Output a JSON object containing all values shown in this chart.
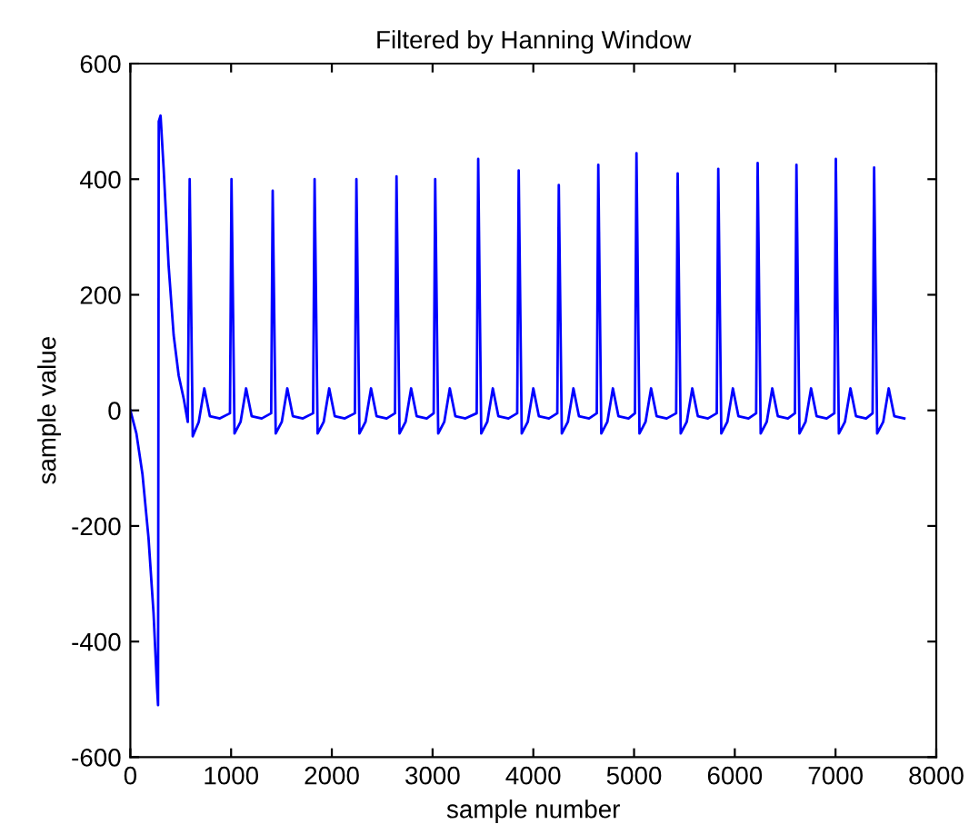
{
  "chart_data": {
    "type": "line",
    "title": "Filtered by Hanning Window",
    "xlabel": "sample number",
    "ylabel": "sample value",
    "xlim": [
      0,
      8000
    ],
    "ylim": [
      -600,
      600
    ],
    "xticks": [
      0,
      1000,
      2000,
      3000,
      4000,
      5000,
      6000,
      7000,
      8000
    ],
    "yticks": [
      -600,
      -400,
      -200,
      0,
      200,
      400,
      600
    ],
    "grid": false,
    "legend": false,
    "marker": "none",
    "line_style": "solid",
    "series": [
      {
        "color": "#0000ff",
        "x": [
          0,
          60,
          120,
          180,
          230,
          265,
          275,
          282,
          300,
          330,
          380,
          430,
          480,
          530,
          570,
          589,
          619,
          679,
          734,
          789,
          889,
          989,
          1004,
          1034,
          1094,
          1149,
          1204,
          1304,
          1398,
          1413,
          1443,
          1503,
          1558,
          1613,
          1713,
          1814,
          1829,
          1859,
          1919,
          1974,
          2029,
          2129,
          2229,
          2244,
          2274,
          2334,
          2389,
          2444,
          2544,
          2627,
          2642,
          2672,
          2732,
          2787,
          2842,
          2942,
          3011,
          3026,
          3056,
          3116,
          3171,
          3226,
          3326,
          3438,
          3453,
          3483,
          3543,
          3598,
          3653,
          3753,
          3840,
          3855,
          3885,
          3945,
          4000,
          4055,
          4155,
          4238,
          4253,
          4283,
          4343,
          4398,
          4453,
          4553,
          4630,
          4645,
          4675,
          4735,
          4790,
          4845,
          4945,
          5009,
          5024,
          5054,
          5114,
          5169,
          5224,
          5324,
          5418,
          5433,
          5463,
          5523,
          5578,
          5633,
          5733,
          5821,
          5836,
          5866,
          5926,
          5981,
          6036,
          6136,
          6212,
          6227,
          6257,
          6317,
          6372,
          6427,
          6527,
          6597,
          6612,
          6642,
          6702,
          6757,
          6812,
          6912,
          6988,
          7003,
          7033,
          7093,
          7148,
          7203,
          7303,
          7368,
          7383,
          7413,
          7473,
          7528,
          7583,
          7683
        ],
        "values": [
          0,
          -40,
          -110,
          -220,
          -350,
          -480,
          -510,
          500,
          510,
          420,
          250,
          130,
          60,
          20,
          -20,
          400,
          -45,
          -20,
          38,
          -10,
          -14,
          -5,
          400,
          -40,
          -20,
          38,
          -10,
          -14,
          -5,
          380,
          -40,
          -20,
          38,
          -10,
          -14,
          -5,
          400,
          -40,
          -20,
          38,
          -10,
          -14,
          -5,
          400,
          -40,
          -20,
          38,
          -10,
          -14,
          -5,
          405,
          -40,
          -20,
          38,
          -10,
          -14,
          -5,
          400,
          -40,
          -20,
          38,
          -10,
          -14,
          -5,
          435,
          -40,
          -20,
          38,
          -10,
          -14,
          -5,
          415,
          -40,
          -20,
          38,
          -10,
          -14,
          -5,
          390,
          -40,
          -20,
          38,
          -10,
          -14,
          -5,
          425,
          -40,
          -20,
          38,
          -10,
          -14,
          -5,
          445,
          -40,
          -20,
          38,
          -10,
          -14,
          -5,
          410,
          -40,
          -20,
          38,
          -10,
          -14,
          -5,
          418,
          -40,
          -20,
          38,
          -10,
          -14,
          -5,
          428,
          -40,
          -20,
          38,
          -10,
          -14,
          -5,
          425,
          -40,
          -20,
          38,
          -10,
          -14,
          -5,
          435,
          -40,
          -20,
          38,
          -10,
          -14,
          -5,
          420,
          -40,
          -20,
          38,
          -10,
          -14
        ]
      }
    ]
  }
}
